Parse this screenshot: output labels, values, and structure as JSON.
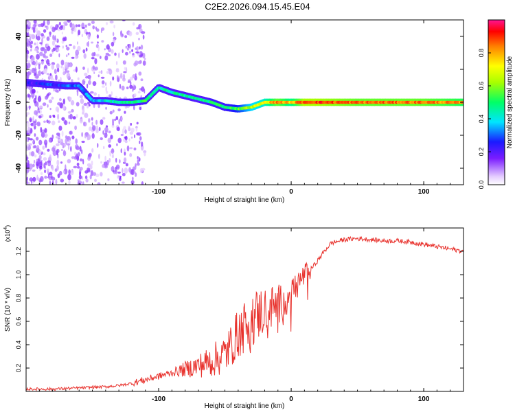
{
  "title": "C2E2.2026.094.15.45.E04",
  "chart_data": [
    {
      "type": "heatmap",
      "title": "C2E2.2026.094.15.45.E04",
      "xlabel": "Height of straight line (km)",
      "ylabel": "Frequency (Hz)",
      "xlim": [
        -200,
        130
      ],
      "ylim": [
        -50,
        50
      ],
      "xticks": [
        -100,
        0,
        100
      ],
      "xtick_labels": [
        "-100",
        "0",
        "100"
      ],
      "yticks": [
        -40,
        -20,
        0,
        20,
        40
      ],
      "ytick_labels": [
        "-40",
        "-20",
        "0",
        "20",
        "40"
      ],
      "colorbar": {
        "label": "Normalized spectral amplitude",
        "range": [
          0,
          1
        ],
        "ticks": [
          0.0,
          0.2,
          0.4,
          0.6,
          0.8
        ],
        "tick_labels": [
          "0.0",
          "0.2",
          "0.4",
          "0.6",
          "0.8"
        ]
      },
      "main_trace": {
        "height_km": [
          -200,
          -185,
          -170,
          -160,
          -150,
          -140,
          -130,
          -120,
          -110,
          -100,
          -90,
          -80,
          -70,
          -60,
          -50,
          -40,
          -30,
          -20,
          -10,
          0,
          10,
          20,
          50,
          100,
          130
        ],
        "frequency_hz": [
          12,
          11,
          10,
          10,
          1,
          1,
          0,
          0,
          1,
          9,
          6,
          4,
          2,
          0,
          -3,
          -4,
          -3,
          0,
          0,
          0,
          0,
          0,
          0,
          0,
          0
        ],
        "amplitude": [
          0.2,
          0.25,
          0.3,
          0.3,
          0.35,
          0.4,
          0.45,
          0.45,
          0.5,
          0.45,
          0.45,
          0.45,
          0.45,
          0.5,
          0.5,
          0.55,
          0.65,
          0.7,
          0.85,
          0.75,
          0.9,
          0.9,
          0.85,
          0.85,
          0.8
        ]
      }
    },
    {
      "type": "line",
      "xlabel": "Height of straight line (km)",
      "ylabel": "SNR (10 * v/v)",
      "y_multiplier": "(x10^4)",
      "y_multiplier_base": "(x10",
      "y_multiplier_exp": "4",
      "y_multiplier_close": ")",
      "xlim": [
        -200,
        130
      ],
      "ylim": [
        0,
        1.4
      ],
      "xticks": [
        -100,
        0,
        100
      ],
      "xtick_labels": [
        "-100",
        "0",
        "100"
      ],
      "yticks": [
        0.2,
        0.4,
        0.6,
        0.8,
        1.0,
        1.2
      ],
      "ytick_labels": [
        "0.2",
        "0.4",
        "0.6",
        "0.8",
        "1.0",
        "1.2"
      ],
      "series": [
        {
          "name": "SNR",
          "color": "#e8322d",
          "x": [
            -200,
            -180,
            -160,
            -140,
            -130,
            -120,
            -110,
            -100,
            -90,
            -80,
            -70,
            -60,
            -50,
            -45,
            -40,
            -35,
            -30,
            -25,
            -20,
            -15,
            -10,
            -5,
            0,
            5,
            10,
            15,
            20,
            25,
            30,
            40,
            50,
            60,
            70,
            80,
            90,
            100,
            110,
            120,
            125,
            130
          ],
          "y": [
            0.02,
            0.02,
            0.03,
            0.04,
            0.05,
            0.07,
            0.1,
            0.13,
            0.16,
            0.19,
            0.22,
            0.26,
            0.32,
            0.4,
            0.5,
            0.56,
            0.62,
            0.66,
            0.7,
            0.72,
            0.74,
            0.78,
            0.85,
            0.92,
            1.0,
            1.05,
            1.12,
            1.2,
            1.27,
            1.3,
            1.31,
            1.3,
            1.29,
            1.29,
            1.28,
            1.26,
            1.24,
            1.22,
            1.21,
            1.2
          ]
        }
      ]
    }
  ]
}
